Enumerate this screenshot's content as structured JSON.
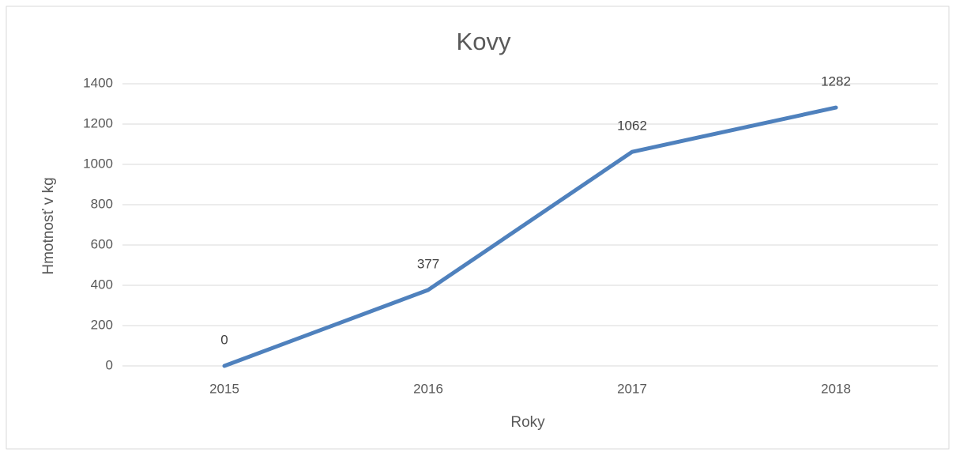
{
  "chart_data": {
    "type": "line",
    "title": "Kovy",
    "x_label": "Roky",
    "y_label": "Hmotnosť v kg",
    "categories": [
      "2015",
      "2016",
      "2017",
      "2018"
    ],
    "series": [
      {
        "name": "Kovy",
        "color": "#4f81bd",
        "values": [
          0,
          377,
          1062,
          1282
        ]
      }
    ],
    "ylim": [
      0,
      1400
    ],
    "yticks": [
      0,
      200,
      400,
      600,
      800,
      1000,
      1200,
      1400
    ],
    "grid": true
  }
}
